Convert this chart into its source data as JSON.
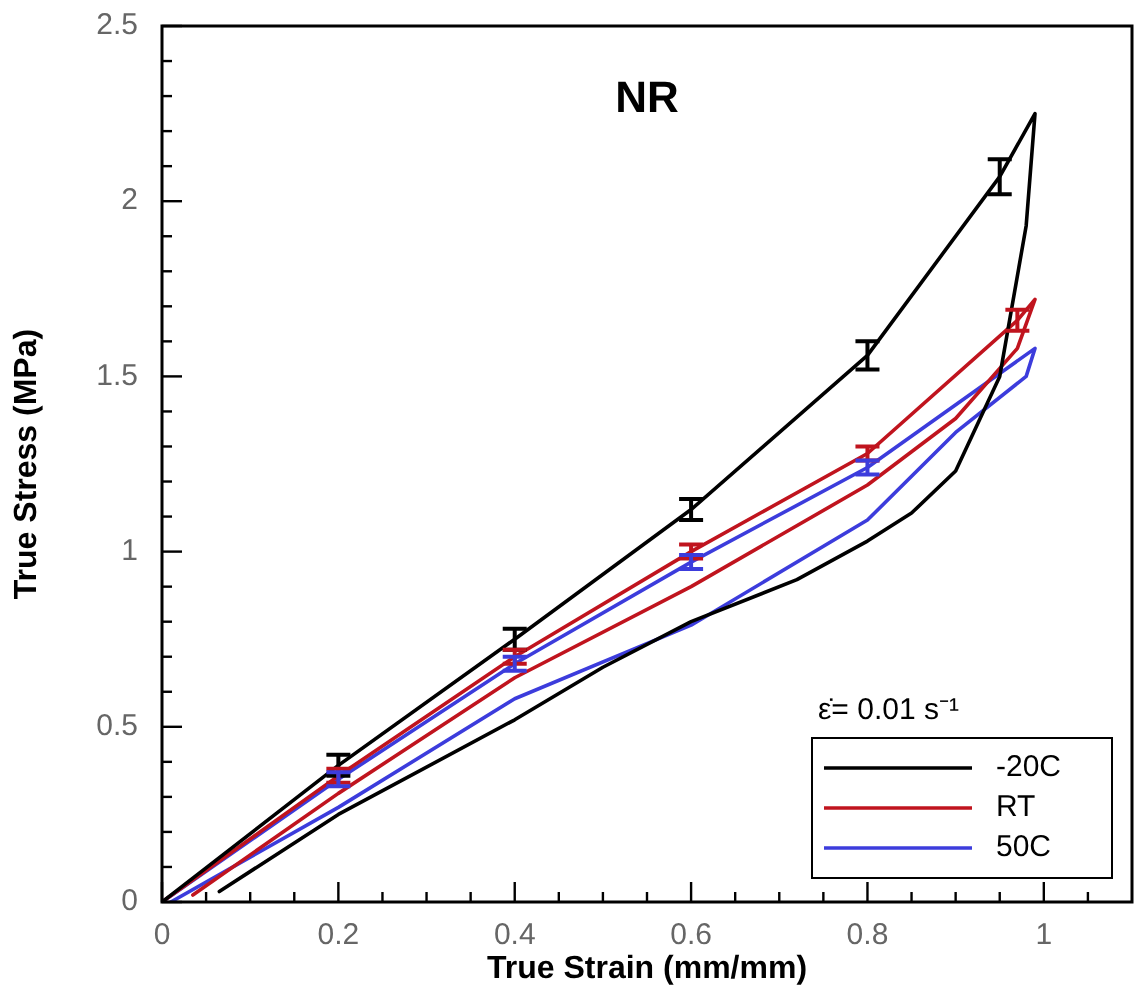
{
  "chart_data": {
    "type": "line",
    "title": "NR",
    "xlabel": "True Strain (mm/mm)",
    "ylabel": "True Stress (MPa)",
    "legend_title": "ε̇= 0.01 s⁻¹",
    "legend": "bottom right",
    "grid": false,
    "marker": "none",
    "line_style": "solid",
    "xlim": [
      0,
      1.1
    ],
    "ylim": [
      0,
      2.5
    ],
    "xticks": [
      0,
      {
        "value": 0.05,
        "label": null
      },
      {
        "value": 0.1,
        "label": null
      },
      {
        "value": 0.15,
        "label": null
      },
      0.2,
      {
        "value": 0.25,
        "label": null
      },
      {
        "value": 0.3,
        "label": null
      },
      {
        "value": 0.35,
        "label": null
      },
      0.4,
      {
        "value": 0.45,
        "label": null
      },
      {
        "value": 0.5,
        "label": null
      },
      {
        "value": 0.55,
        "label": null
      },
      0.6,
      {
        "value": 0.65,
        "label": null
      },
      {
        "value": 0.7,
        "label": null
      },
      {
        "value": 0.75,
        "label": null
      },
      0.8,
      {
        "value": 0.85,
        "label": null
      },
      {
        "value": 0.9,
        "label": null
      },
      {
        "value": 0.95,
        "label": null
      },
      1,
      {
        "value": 1.05,
        "label": null
      }
    ],
    "yticks": [
      0,
      {
        "value": 0.1,
        "label": null
      },
      {
        "value": 0.2,
        "label": null
      },
      {
        "value": 0.3,
        "label": null
      },
      {
        "value": 0.4,
        "label": null
      },
      0.5,
      {
        "value": 0.6,
        "label": null
      },
      {
        "value": 0.7,
        "label": null
      },
      {
        "value": 0.8,
        "label": null
      },
      {
        "value": 0.9,
        "label": null
      },
      1,
      {
        "value": 1.1,
        "label": null
      },
      {
        "value": 1.2,
        "label": null
      },
      {
        "value": 1.3,
        "label": null
      },
      {
        "value": 1.4,
        "label": null
      },
      1.5,
      {
        "value": 1.6,
        "label": null
      },
      {
        "value": 1.7,
        "label": null
      },
      {
        "value": 1.8,
        "label": null
      },
      {
        "value": 1.9,
        "label": null
      },
      2,
      {
        "value": 2.1,
        "label": null
      },
      {
        "value": 2.2,
        "label": null
      },
      {
        "value": 2.3,
        "label": null
      },
      {
        "value": 2.4,
        "label": null
      },
      2.5
    ],
    "series": [
      {
        "name": "-20C",
        "color": "#000000",
        "x": [
          0,
          0.2,
          0.4,
          0.6,
          0.8,
          0.95,
          0.99,
          0.98,
          0.95,
          0.9,
          0.85,
          0.8,
          0.72,
          0.6,
          0.5,
          0.4,
          0.2,
          0.065
        ],
        "values": [
          0,
          0.39,
          0.75,
          1.12,
          1.56,
          2.07,
          2.25,
          1.93,
          1.5,
          1.23,
          1.11,
          1.03,
          0.92,
          0.8,
          0.67,
          0.52,
          0.25,
          0.03
        ],
        "errors": [
          null,
          0.03,
          0.03,
          0.03,
          0.04,
          0.05,
          null,
          null,
          null,
          null,
          null,
          null,
          null,
          null,
          null,
          null,
          null,
          null
        ]
      },
      {
        "name": "RT",
        "color": "#c0141e",
        "x": [
          0,
          0.2,
          0.4,
          0.6,
          0.8,
          0.97,
          0.99,
          0.97,
          0.9,
          0.8,
          0.6,
          0.4,
          0.2,
          0.035
        ],
        "values": [
          0,
          0.36,
          0.7,
          1,
          1.28,
          1.66,
          1.72,
          1.58,
          1.38,
          1.19,
          0.9,
          0.64,
          0.31,
          0.02
        ],
        "errors": [
          null,
          0.02,
          0.02,
          0.02,
          0.02,
          0.03,
          null,
          null,
          null,
          null,
          null,
          null,
          null,
          null
        ]
      },
      {
        "name": "50C",
        "color": "#3c3cdc",
        "x": [
          0,
          0.2,
          0.4,
          0.6,
          0.8,
          0.99,
          0.98,
          0.9,
          0.8,
          0.6,
          0.4,
          0.2,
          0.01
        ],
        "values": [
          0,
          0.35,
          0.68,
          0.97,
          1.24,
          1.58,
          1.5,
          1.34,
          1.09,
          0.79,
          0.58,
          0.27,
          0
        ],
        "errors": [
          null,
          0.02,
          0.02,
          0.02,
          0.02,
          null,
          null,
          null,
          null,
          null,
          null,
          null,
          null
        ]
      }
    ]
  }
}
